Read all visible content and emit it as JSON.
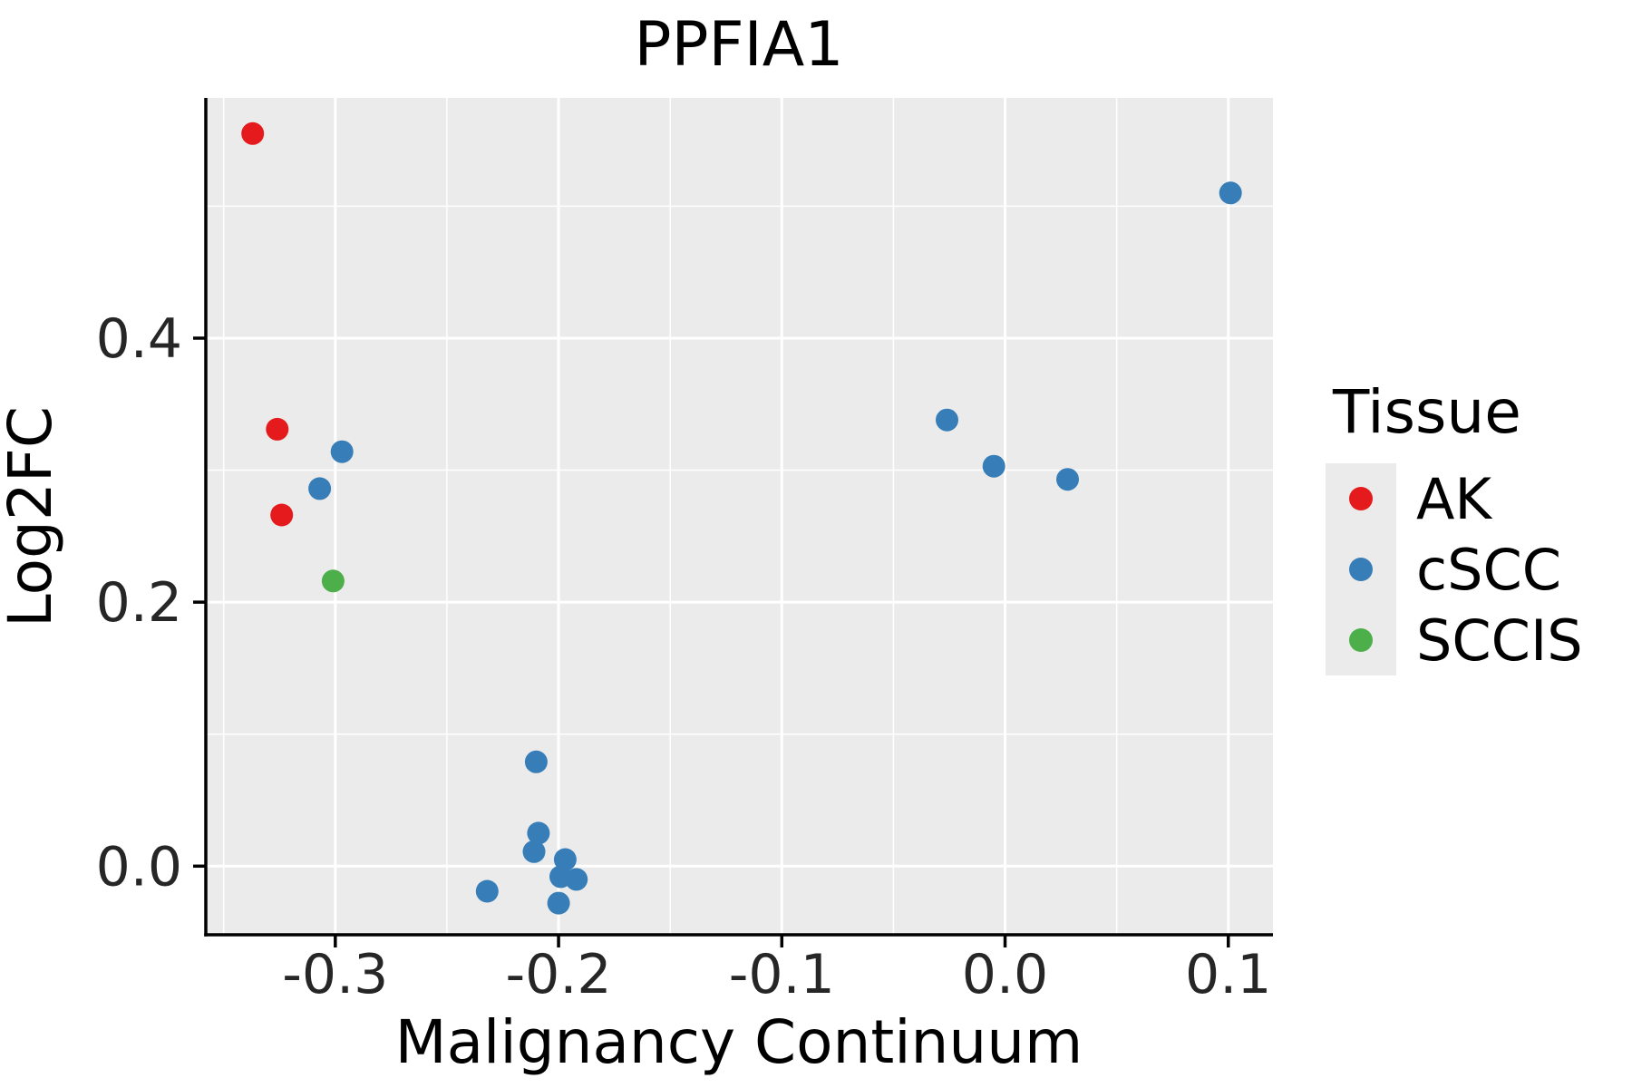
{
  "chart_data": {
    "type": "scatter",
    "title": "PPFIA1",
    "xlabel": "Malignancy Continuum",
    "ylabel": "Log2FC",
    "xlim": [
      -0.358,
      0.12
    ],
    "ylim": [
      -0.052,
      0.582
    ],
    "x_ticks": [
      -0.3,
      -0.2,
      -0.1,
      0.0,
      0.1
    ],
    "x_tick_labels": [
      "-0.3",
      "-0.2",
      "-0.1",
      "0.0",
      "0.1"
    ],
    "y_ticks": [
      0.0,
      0.2,
      0.4
    ],
    "y_tick_labels": [
      "0.0",
      "0.2",
      "0.4"
    ],
    "x_minor_ticks": [
      -0.35,
      -0.25,
      -0.15,
      -0.05,
      0.05
    ],
    "y_minor_ticks": [
      0.1,
      0.3,
      0.5
    ],
    "grid": true,
    "panel_bg": "#EBEBEB",
    "grid_color": "#FFFFFF",
    "axis_color": "#000000",
    "tick_label_color": "#262626",
    "legend": {
      "title": "Tissue",
      "position": "right"
    },
    "series": [
      {
        "name": "AK",
        "color": "#E41A1C",
        "points": [
          [
            -0.337,
            0.555
          ],
          [
            -0.326,
            0.331
          ],
          [
            -0.324,
            0.266
          ]
        ]
      },
      {
        "name": "cSCC",
        "color": "#377EB8",
        "points": [
          [
            -0.307,
            0.286
          ],
          [
            -0.297,
            0.314
          ],
          [
            -0.232,
            -0.019
          ],
          [
            -0.21,
            0.079
          ],
          [
            -0.209,
            0.025
          ],
          [
            -0.211,
            0.011
          ],
          [
            -0.197,
            0.005
          ],
          [
            -0.199,
            -0.008
          ],
          [
            -0.192,
            -0.01
          ],
          [
            -0.2,
            -0.028
          ],
          [
            -0.026,
            0.338
          ],
          [
            -0.005,
            0.303
          ],
          [
            0.028,
            0.293
          ],
          [
            0.101,
            0.51
          ]
        ]
      },
      {
        "name": "SCCIS",
        "color": "#4DAF4A",
        "points": [
          [
            -0.301,
            0.216
          ]
        ]
      }
    ]
  }
}
